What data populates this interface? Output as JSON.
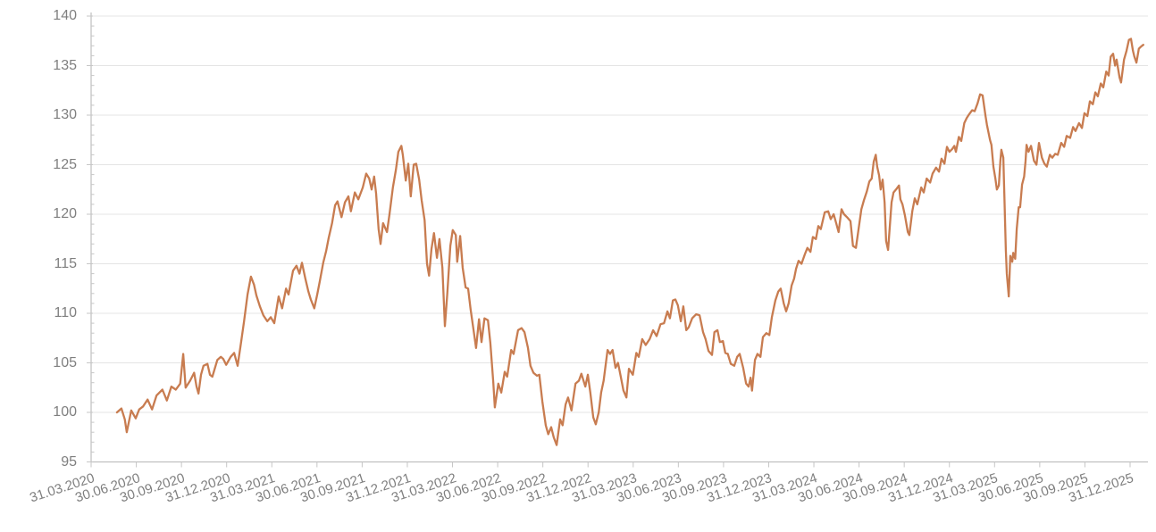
{
  "chart_data": {
    "type": "line",
    "description": "Indexed performance line chart, base 100 at start (31.03.2020), quarterly x-axis labels, daily-style noisy single series",
    "line_color": "#C87C50",
    "grid_color": "#E4E4E4",
    "axis_color": "#BFBFBF",
    "tick_color": "#C6C6C6",
    "label_color": "#7f7f7f",
    "grid": "horizontal-only",
    "legend_position": "none",
    "ylim": [
      95,
      140
    ],
    "y_ticks": [
      95,
      100,
      105,
      110,
      115,
      120,
      125,
      130,
      135,
      140
    ],
    "y_minor_tick_step": 1,
    "x_unit": "days since 31.03.2020",
    "x_tick_labels": [
      "31.03.2020",
      "30.06.2020",
      "30.09.2020",
      "31.12.2020",
      "31.03.2021",
      "30.06.2021",
      "30.09.2021",
      "31.12.2021",
      "31.03.2022",
      "30.06.2022",
      "30.09.2022",
      "31.12.2022",
      "31.03.2023",
      "30.06.2023",
      "30.09.2023",
      "31.12.2023",
      "31.03.2024",
      "30.06.2024",
      "30.09.2024",
      "31.12.2024",
      "31.03.2025",
      "30.06.2025",
      "30.09.2025",
      "31.12.2025"
    ],
    "points": [
      [
        7,
        100.0
      ],
      [
        16,
        100.4
      ],
      [
        23,
        99.3
      ],
      [
        27,
        98.0
      ],
      [
        36,
        100.2
      ],
      [
        45,
        99.4
      ],
      [
        52,
        100.3
      ],
      [
        60,
        100.6
      ],
      [
        69,
        101.3
      ],
      [
        78,
        100.3
      ],
      [
        87,
        101.7
      ],
      [
        99,
        102.3
      ],
      [
        108,
        101.2
      ],
      [
        117,
        102.6
      ],
      [
        126,
        102.3
      ],
      [
        135,
        102.9
      ],
      [
        141,
        105.9
      ],
      [
        146,
        102.5
      ],
      [
        155,
        103.2
      ],
      [
        163,
        104.0
      ],
      [
        168,
        102.6
      ],
      [
        172,
        101.9
      ],
      [
        177,
        103.8
      ],
      [
        182,
        104.7
      ],
      [
        190,
        104.9
      ],
      [
        195,
        103.8
      ],
      [
        200,
        103.6
      ],
      [
        210,
        105.3
      ],
      [
        217,
        105.6
      ],
      [
        222,
        105.4
      ],
      [
        228,
        104.8
      ],
      [
        237,
        105.6
      ],
      [
        244,
        106.0
      ],
      [
        251,
        104.7
      ],
      [
        258,
        107.1
      ],
      [
        264,
        109.2
      ],
      [
        271,
        111.9
      ],
      [
        278,
        113.7
      ],
      [
        284,
        112.9
      ],
      [
        289,
        111.8
      ],
      [
        296,
        110.7
      ],
      [
        303,
        109.8
      ],
      [
        311,
        109.2
      ],
      [
        318,
        109.6
      ],
      [
        325,
        109.0
      ],
      [
        334,
        111.7
      ],
      [
        341,
        110.5
      ],
      [
        349,
        112.5
      ],
      [
        354,
        111.9
      ],
      [
        363,
        114.3
      ],
      [
        370,
        114.8
      ],
      [
        376,
        114.0
      ],
      [
        381,
        115.1
      ],
      [
        388,
        113.5
      ],
      [
        394,
        112.2
      ],
      [
        399,
        111.4
      ],
      [
        406,
        110.5
      ],
      [
        412,
        111.9
      ],
      [
        417,
        113.2
      ],
      [
        424,
        115.1
      ],
      [
        430,
        116.3
      ],
      [
        435,
        117.6
      ],
      [
        442,
        119.1
      ],
      [
        448,
        120.9
      ],
      [
        453,
        121.3
      ],
      [
        461,
        119.7
      ],
      [
        468,
        121.2
      ],
      [
        475,
        121.8
      ],
      [
        480,
        120.3
      ],
      [
        488,
        122.2
      ],
      [
        495,
        121.5
      ],
      [
        504,
        122.7
      ],
      [
        511,
        124.1
      ],
      [
        517,
        123.6
      ],
      [
        522,
        122.5
      ],
      [
        527,
        123.8
      ],
      [
        531,
        122.1
      ],
      [
        536,
        118.5
      ],
      [
        540,
        117.0
      ],
      [
        545,
        119.1
      ],
      [
        553,
        118.2
      ],
      [
        558,
        120.0
      ],
      [
        565,
        122.7
      ],
      [
        571,
        124.5
      ],
      [
        576,
        126.3
      ],
      [
        582,
        126.9
      ],
      [
        585,
        126.0
      ],
      [
        591,
        123.4
      ],
      [
        596,
        125.1
      ],
      [
        601,
        121.8
      ],
      [
        607,
        125.0
      ],
      [
        612,
        125.1
      ],
      [
        618,
        123.5
      ],
      [
        623,
        121.4
      ],
      [
        629,
        119.4
      ],
      [
        634,
        115.0
      ],
      [
        638,
        113.8
      ],
      [
        643,
        116.5
      ],
      [
        648,
        118.1
      ],
      [
        654,
        115.6
      ],
      [
        659,
        117.5
      ],
      [
        665,
        114.6
      ],
      [
        670,
        108.7
      ],
      [
        675,
        112.0
      ],
      [
        681,
        116.8
      ],
      [
        686,
        118.4
      ],
      [
        692,
        117.9
      ],
      [
        695,
        115.2
      ],
      [
        701,
        117.8
      ],
      [
        706,
        114.6
      ],
      [
        712,
        112.6
      ],
      [
        717,
        112.5
      ],
      [
        722,
        110.4
      ],
      [
        728,
        108.3
      ],
      [
        733,
        106.5
      ],
      [
        739,
        109.4
      ],
      [
        744,
        107.1
      ],
      [
        750,
        109.5
      ],
      [
        757,
        109.3
      ],
      [
        762,
        107.0
      ],
      [
        768,
        103.0
      ],
      [
        771,
        100.5
      ],
      [
        778,
        102.9
      ],
      [
        784,
        102.0
      ],
      [
        791,
        104.1
      ],
      [
        796,
        103.6
      ],
      [
        804,
        106.3
      ],
      [
        809,
        105.9
      ],
      [
        818,
        108.3
      ],
      [
        825,
        108.5
      ],
      [
        831,
        108.1
      ],
      [
        838,
        106.5
      ],
      [
        843,
        104.7
      ],
      [
        849,
        104.0
      ],
      [
        856,
        103.7
      ],
      [
        861,
        103.8
      ],
      [
        867,
        101.1
      ],
      [
        874,
        98.7
      ],
      [
        879,
        97.8
      ],
      [
        885,
        98.5
      ],
      [
        890,
        97.5
      ],
      [
        896,
        96.7
      ],
      [
        903,
        99.3
      ],
      [
        908,
        98.7
      ],
      [
        914,
        100.8
      ],
      [
        919,
        101.5
      ],
      [
        926,
        100.2
      ],
      [
        934,
        102.9
      ],
      [
        941,
        103.2
      ],
      [
        946,
        103.9
      ],
      [
        954,
        102.6
      ],
      [
        959,
        103.8
      ],
      [
        964,
        102.0
      ],
      [
        970,
        99.5
      ],
      [
        975,
        98.8
      ],
      [
        981,
        100.0
      ],
      [
        986,
        102.0
      ],
      [
        991,
        103.2
      ],
      [
        999,
        106.3
      ],
      [
        1004,
        105.9
      ],
      [
        1009,
        106.3
      ],
      [
        1015,
        104.5
      ],
      [
        1020,
        105.0
      ],
      [
        1026,
        103.5
      ],
      [
        1031,
        102.2
      ],
      [
        1037,
        101.5
      ],
      [
        1042,
        104.4
      ],
      [
        1050,
        103.8
      ],
      [
        1057,
        106.0
      ],
      [
        1062,
        105.6
      ],
      [
        1069,
        107.4
      ],
      [
        1076,
        106.8
      ],
      [
        1084,
        107.4
      ],
      [
        1091,
        108.3
      ],
      [
        1098,
        107.7
      ],
      [
        1106,
        108.9
      ],
      [
        1113,
        109.0
      ],
      [
        1120,
        110.2
      ],
      [
        1125,
        109.5
      ],
      [
        1131,
        111.3
      ],
      [
        1136,
        111.4
      ],
      [
        1141,
        110.8
      ],
      [
        1147,
        109.2
      ],
      [
        1152,
        110.7
      ],
      [
        1158,
        108.3
      ],
      [
        1163,
        108.6
      ],
      [
        1170,
        109.5
      ],
      [
        1178,
        109.9
      ],
      [
        1185,
        109.8
      ],
      [
        1192,
        108.1
      ],
      [
        1197,
        107.4
      ],
      [
        1203,
        106.2
      ],
      [
        1210,
        105.8
      ],
      [
        1215,
        108.1
      ],
      [
        1221,
        108.3
      ],
      [
        1226,
        107.1
      ],
      [
        1232,
        107.2
      ],
      [
        1237,
        106.0
      ],
      [
        1242,
        105.9
      ],
      [
        1248,
        104.9
      ],
      [
        1255,
        104.7
      ],
      [
        1261,
        105.6
      ],
      [
        1266,
        105.9
      ],
      [
        1273,
        104.5
      ],
      [
        1279,
        102.9
      ],
      [
        1284,
        102.6
      ],
      [
        1288,
        103.5
      ],
      [
        1291,
        102.2
      ],
      [
        1297,
        105.3
      ],
      [
        1302,
        105.9
      ],
      [
        1308,
        105.6
      ],
      [
        1313,
        107.6
      ],
      [
        1320,
        108.0
      ],
      [
        1326,
        107.8
      ],
      [
        1331,
        109.6
      ],
      [
        1338,
        111.3
      ],
      [
        1344,
        112.2
      ],
      [
        1349,
        112.5
      ],
      [
        1355,
        111.0
      ],
      [
        1360,
        110.2
      ],
      [
        1365,
        111.0
      ],
      [
        1371,
        112.8
      ],
      [
        1376,
        113.5
      ],
      [
        1380,
        114.5
      ],
      [
        1385,
        115.3
      ],
      [
        1391,
        115.0
      ],
      [
        1398,
        116.0
      ],
      [
        1403,
        116.6
      ],
      [
        1409,
        116.2
      ],
      [
        1414,
        117.7
      ],
      [
        1420,
        117.5
      ],
      [
        1425,
        118.8
      ],
      [
        1430,
        118.5
      ],
      [
        1438,
        120.2
      ],
      [
        1445,
        120.3
      ],
      [
        1450,
        119.5
      ],
      [
        1456,
        120.0
      ],
      [
        1461,
        119.1
      ],
      [
        1466,
        118.2
      ],
      [
        1472,
        120.5
      ],
      [
        1477,
        120.0
      ],
      [
        1483,
        119.7
      ],
      [
        1490,
        119.3
      ],
      [
        1495,
        116.8
      ],
      [
        1501,
        116.6
      ],
      [
        1506,
        118.4
      ],
      [
        1512,
        120.5
      ],
      [
        1517,
        121.4
      ],
      [
        1523,
        122.3
      ],
      [
        1528,
        123.3
      ],
      [
        1533,
        123.6
      ],
      [
        1537,
        125.3
      ],
      [
        1541,
        126.0
      ],
      [
        1544,
        124.8
      ],
      [
        1548,
        123.9
      ],
      [
        1551,
        122.5
      ],
      [
        1555,
        123.5
      ],
      [
        1559,
        121.2
      ],
      [
        1562,
        117.3
      ],
      [
        1566,
        116.4
      ],
      [
        1570,
        119.1
      ],
      [
        1573,
        121.2
      ],
      [
        1577,
        122.2
      ],
      [
        1582,
        122.5
      ],
      [
        1588,
        122.9
      ],
      [
        1591,
        121.5
      ],
      [
        1595,
        121.0
      ],
      [
        1600,
        119.9
      ],
      [
        1606,
        118.2
      ],
      [
        1609,
        117.9
      ],
      [
        1615,
        120.3
      ],
      [
        1620,
        121.6
      ],
      [
        1625,
        121.0
      ],
      [
        1633,
        122.7
      ],
      [
        1638,
        122.2
      ],
      [
        1644,
        123.6
      ],
      [
        1651,
        123.2
      ],
      [
        1656,
        124.1
      ],
      [
        1663,
        124.7
      ],
      [
        1669,
        124.3
      ],
      [
        1674,
        125.6
      ],
      [
        1680,
        125.1
      ],
      [
        1685,
        126.8
      ],
      [
        1690,
        126.3
      ],
      [
        1696,
        126.6
      ],
      [
        1700,
        126.9
      ],
      [
        1703,
        126.3
      ],
      [
        1709,
        127.8
      ],
      [
        1714,
        127.4
      ],
      [
        1720,
        129.2
      ],
      [
        1725,
        129.7
      ],
      [
        1730,
        130.1
      ],
      [
        1736,
        130.5
      ],
      [
        1741,
        130.4
      ],
      [
        1747,
        131.2
      ],
      [
        1752,
        132.1
      ],
      [
        1757,
        132.0
      ],
      [
        1763,
        129.9
      ],
      [
        1766,
        129.0
      ],
      [
        1772,
        127.5
      ],
      [
        1775,
        127.0
      ],
      [
        1779,
        124.8
      ],
      [
        1783,
        123.6
      ],
      [
        1786,
        122.5
      ],
      [
        1790,
        122.9
      ],
      [
        1793,
        125.4
      ],
      [
        1795,
        126.5
      ],
      [
        1799,
        125.7
      ],
      [
        1801,
        122.1
      ],
      [
        1804,
        116.4
      ],
      [
        1806,
        114.0
      ],
      [
        1810,
        111.7
      ],
      [
        1813,
        115.8
      ],
      [
        1817,
        115.2
      ],
      [
        1819,
        116.1
      ],
      [
        1823,
        115.5
      ],
      [
        1826,
        118.5
      ],
      [
        1830,
        120.7
      ],
      [
        1833,
        120.7
      ],
      [
        1837,
        123.0
      ],
      [
        1841,
        123.8
      ],
      [
        1844,
        125.4
      ],
      [
        1846,
        127.0
      ],
      [
        1850,
        126.3
      ],
      [
        1855,
        126.9
      ],
      [
        1861,
        125.4
      ],
      [
        1866,
        125.0
      ],
      [
        1871,
        127.2
      ],
      [
        1877,
        125.7
      ],
      [
        1882,
        125.1
      ],
      [
        1887,
        124.8
      ],
      [
        1893,
        126.0
      ],
      [
        1898,
        125.7
      ],
      [
        1904,
        126.1
      ],
      [
        1909,
        126.0
      ],
      [
        1916,
        127.2
      ],
      [
        1922,
        126.8
      ],
      [
        1927,
        127.9
      ],
      [
        1934,
        127.7
      ],
      [
        1940,
        128.8
      ],
      [
        1945,
        128.4
      ],
      [
        1952,
        129.2
      ],
      [
        1958,
        128.7
      ],
      [
        1963,
        130.2
      ],
      [
        1969,
        129.9
      ],
      [
        1974,
        131.4
      ],
      [
        1980,
        131.1
      ],
      [
        1985,
        132.3
      ],
      [
        1990,
        131.9
      ],
      [
        1996,
        133.2
      ],
      [
        2001,
        132.8
      ],
      [
        2007,
        134.4
      ],
      [
        2012,
        134.0
      ],
      [
        2016,
        135.9
      ],
      [
        2021,
        136.2
      ],
      [
        2025,
        135.0
      ],
      [
        2028,
        135.6
      ],
      [
        2034,
        133.8
      ],
      [
        2037,
        133.3
      ],
      [
        2043,
        135.6
      ],
      [
        2048,
        136.5
      ],
      [
        2053,
        137.6
      ],
      [
        2057,
        137.7
      ],
      [
        2061,
        136.5
      ],
      [
        2064,
        135.9
      ],
      [
        2068,
        135.3
      ],
      [
        2073,
        136.7
      ],
      [
        2077,
        136.9
      ],
      [
        2082,
        137.1
      ]
    ]
  }
}
